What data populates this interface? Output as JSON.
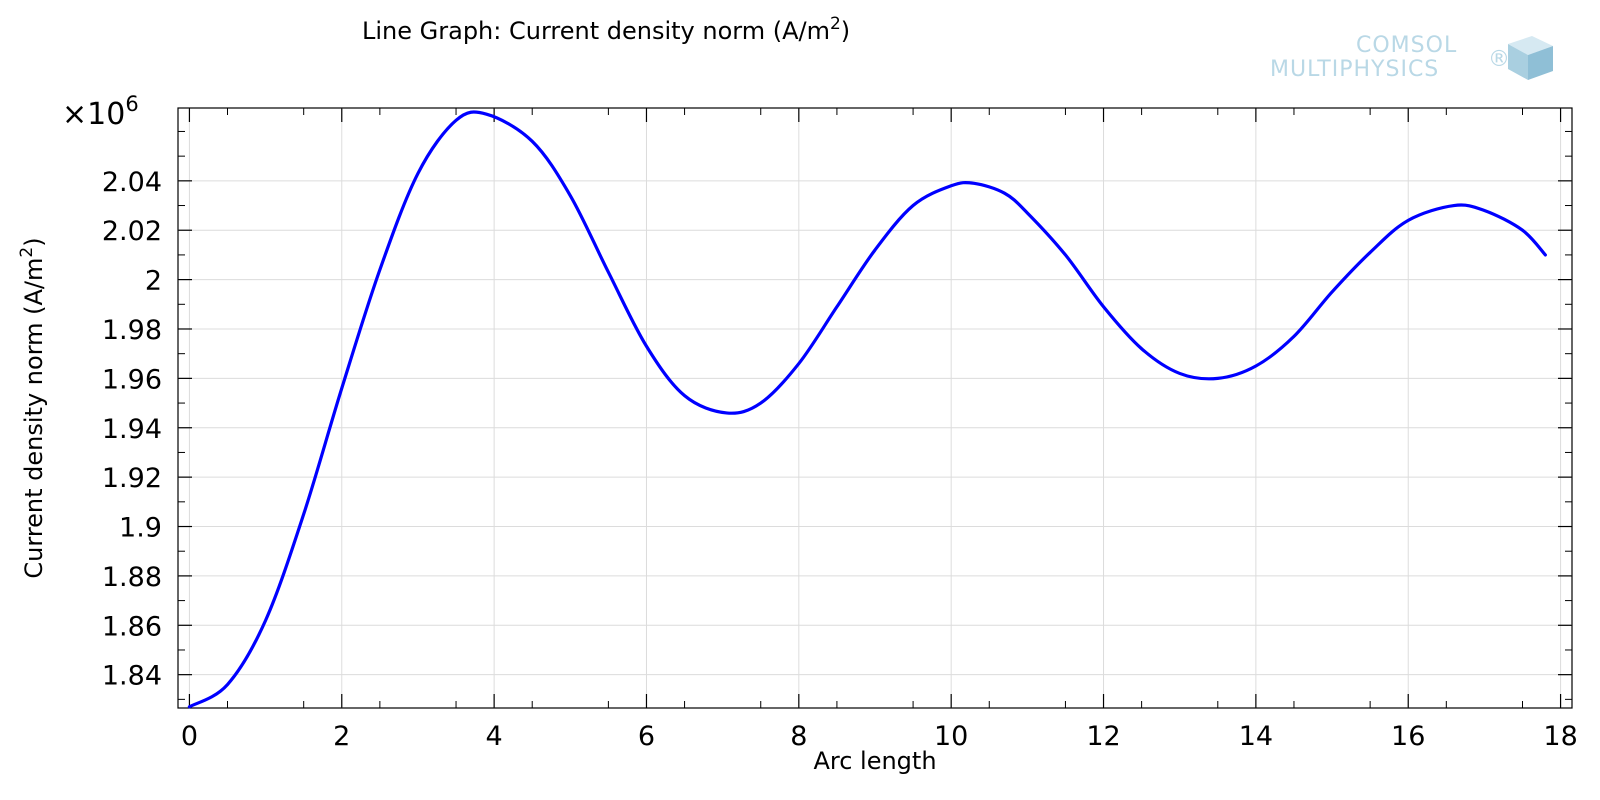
{
  "title": "Line Graph: Current density norm (A/m",
  "title_sup": "2",
  "title_end": ")",
  "logo": {
    "line1": "COMSOL",
    "line2": "MULTIPHYSICS",
    "mark": "®"
  },
  "chart_data": {
    "type": "line",
    "xlabel": "Arc length",
    "ylabel": "Current density norm (A/m",
    "ylabel_sup": "2",
    "ylabel_end": ")",
    "exponent": {
      "base": "×10",
      "power": "6"
    },
    "xlim": [
      -0.15,
      18.15
    ],
    "ylim": [
      1.8265,
      2.0695
    ],
    "xticks": [
      0,
      2,
      4,
      6,
      8,
      10,
      12,
      14,
      16,
      18
    ],
    "yticks": [
      1.84,
      1.86,
      1.88,
      1.9,
      1.92,
      1.94,
      1.96,
      1.98,
      2,
      2.02,
      2.04
    ],
    "ytick_labels": [
      "1.84",
      "1.86",
      "1.88",
      "1.9",
      "1.92",
      "1.94",
      "1.96",
      "1.98",
      "2",
      "2.02",
      "2.04"
    ],
    "grid": true,
    "series": [
      {
        "color": "#0000ff",
        "x": [
          0,
          0.5,
          1,
          1.5,
          2,
          2.5,
          3,
          3.5,
          3.9,
          4.5,
          5,
          5.5,
          6,
          6.5,
          7.05,
          7.5,
          8,
          8.5,
          9,
          9.5,
          10,
          10.3,
          10.7,
          11,
          11.5,
          12,
          12.5,
          13,
          13.5,
          14,
          14.5,
          15,
          15.5,
          16,
          16.6,
          17,
          17.5,
          17.8
        ],
        "y": [
          1.827,
          1.836,
          1.862,
          1.905,
          1.956,
          2.004,
          2.043,
          2.0645,
          2.067,
          2.056,
          2.034,
          2.003,
          1.973,
          1.953,
          1.946,
          1.95,
          1.966,
          1.989,
          2.012,
          2.03,
          2.038,
          2.039,
          2.035,
          2.027,
          2.01,
          1.989,
          1.972,
          1.962,
          1.96,
          1.965,
          1.977,
          1.995,
          2.011,
          2.024,
          2.03,
          2.028,
          2.02,
          2.01
        ]
      }
    ]
  }
}
